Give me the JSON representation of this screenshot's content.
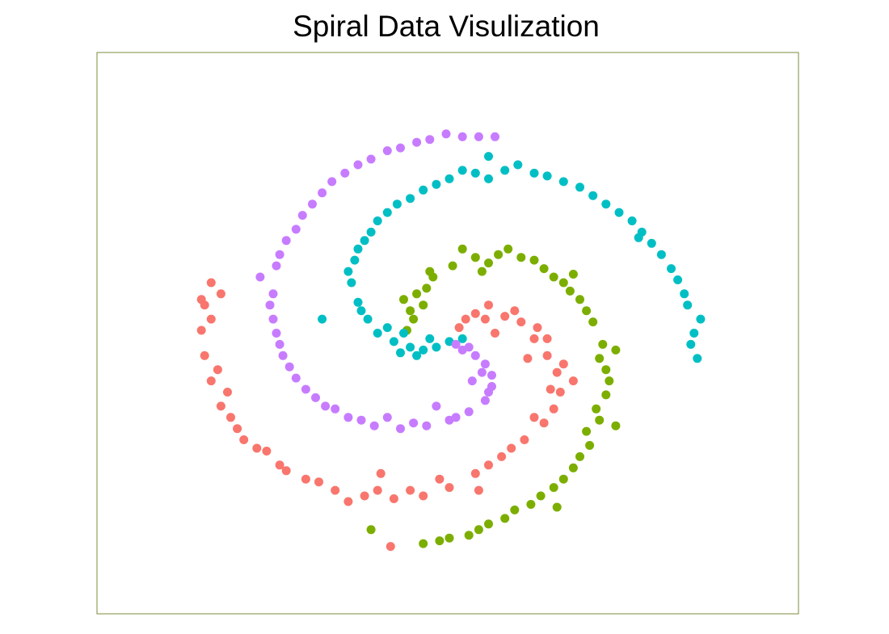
{
  "chart_data": {
    "type": "scatter",
    "title": "Spiral Data Visulization",
    "xlabel": "",
    "ylabel": "",
    "grid": false,
    "legend": "none",
    "axes_visible": false,
    "frame_color": "#7a8c3c",
    "xlim": [
      -1.1,
      1.05
    ],
    "ylim": [
      -1.0,
      1.0
    ],
    "series": [
      {
        "color": "#F8766D",
        "points": [
          [
            0.1,
            0.1
          ],
          [
            0.06,
            0.07
          ],
          [
            0.03,
            0.05
          ],
          [
            0.15,
            0.06
          ],
          [
            0.2,
            0.04
          ],
          [
            0.24,
            -0.02
          ],
          [
            0.28,
            -0.08
          ],
          [
            0.31,
            -0.14
          ],
          [
            0.32,
            -0.21
          ],
          [
            0.3,
            -0.27
          ],
          [
            0.27,
            -0.32
          ],
          [
            0.21,
            -0.38
          ],
          [
            0.14,
            -0.44
          ],
          [
            0.06,
            -0.5
          ],
          [
            -0.02,
            -0.55
          ],
          [
            -0.1,
            -0.58
          ],
          [
            -0.19,
            -0.59
          ],
          [
            -0.28,
            -0.58
          ],
          [
            -0.37,
            -0.56
          ],
          [
            -0.46,
            -0.52
          ],
          [
            -0.54,
            -0.47
          ],
          [
            -0.61,
            -0.41
          ],
          [
            -0.67,
            -0.34
          ],
          [
            -0.72,
            -0.26
          ],
          [
            -0.75,
            -0.17
          ],
          [
            -0.77,
            -0.08
          ],
          [
            -0.78,
            0.01
          ],
          [
            -0.77,
            0.1
          ],
          [
            -0.75,
            0.18
          ],
          [
            0.25,
            0.02
          ],
          [
            0.18,
            0.08
          ],
          [
            0.09,
            0.05
          ],
          [
            0.28,
            -0.02
          ],
          [
            0.33,
            -0.11
          ],
          [
            0.29,
            -0.2
          ],
          [
            0.24,
            -0.3
          ],
          [
            0.1,
            -0.47
          ],
          [
            -0.05,
            -0.52
          ],
          [
            -0.24,
            -0.56
          ],
          [
            -0.42,
            -0.53
          ],
          [
            -0.58,
            -0.42
          ],
          [
            -0.69,
            -0.3
          ],
          [
            -0.73,
            -0.13
          ],
          [
            -0.75,
            0.05
          ],
          [
            -0.72,
            0.14
          ],
          [
            0.12,
            0.0
          ],
          [
            0.36,
            -0.17
          ],
          [
            0.17,
            -0.41
          ],
          [
            -0.14,
            -0.56
          ],
          [
            -0.33,
            -0.6
          ],
          [
            -0.52,
            -0.49
          ],
          [
            -0.65,
            -0.38
          ],
          [
            -0.7,
            -0.21
          ],
          [
            -0.78,
            0.12
          ],
          [
            0.01,
            0.02
          ],
          [
            0.22,
            -0.09
          ],
          [
            -0.23,
            -0.5
          ],
          [
            -0.2,
            -0.76
          ],
          [
            0.07,
            -0.56
          ]
        ]
      },
      {
        "color": "#7CAE00",
        "points": [
          [
            -0.1,
            0.1
          ],
          [
            -0.13,
            0.05
          ],
          [
            -0.15,
            0.01
          ],
          [
            -0.12,
            0.14
          ],
          [
            -0.07,
            0.2
          ],
          [
            -0.01,
            0.24
          ],
          [
            0.06,
            0.27
          ],
          [
            0.13,
            0.28
          ],
          [
            0.2,
            0.27
          ],
          [
            0.27,
            0.23
          ],
          [
            0.33,
            0.18
          ],
          [
            0.38,
            0.12
          ],
          [
            0.42,
            0.04
          ],
          [
            0.45,
            -0.04
          ],
          [
            0.46,
            -0.13
          ],
          [
            0.46,
            -0.22
          ],
          [
            0.44,
            -0.31
          ],
          [
            0.41,
            -0.4
          ],
          [
            0.36,
            -0.48
          ],
          [
            0.3,
            -0.55
          ],
          [
            0.23,
            -0.61
          ],
          [
            0.15,
            -0.66
          ],
          [
            0.07,
            -0.7
          ],
          [
            -0.02,
            -0.73
          ],
          [
            -0.1,
            -0.75
          ],
          [
            -0.09,
            0.16
          ],
          [
            -0.14,
            0.08
          ],
          [
            0.02,
            0.3
          ],
          [
            0.1,
            0.25
          ],
          [
            0.24,
            0.26
          ],
          [
            0.3,
            0.2
          ],
          [
            0.35,
            0.15
          ],
          [
            0.4,
            0.08
          ],
          [
            0.44,
            -0.09
          ],
          [
            0.47,
            -0.17
          ],
          [
            0.43,
            -0.27
          ],
          [
            0.38,
            -0.44
          ],
          [
            0.33,
            -0.52
          ],
          [
            0.26,
            -0.58
          ],
          [
            0.18,
            -0.63
          ],
          [
            0.1,
            -0.68
          ],
          [
            0.04,
            -0.72
          ],
          [
            -0.05,
            -0.74
          ],
          [
            -0.08,
            0.22
          ],
          [
            -0.16,
            0.12
          ],
          [
            0.08,
            0.22
          ],
          [
            0.16,
            0.3
          ],
          [
            0.36,
            0.21
          ],
          [
            0.49,
            -0.06
          ],
          [
            0.4,
            -0.35
          ],
          [
            -0.26,
            -0.7
          ],
          [
            0.49,
            -0.33
          ],
          [
            0.31,
            -0.62
          ]
        ]
      },
      {
        "color": "#00BFC4",
        "points": [
          [
            -0.02,
            -0.03
          ],
          [
            -0.06,
            -0.05
          ],
          [
            -0.1,
            -0.06
          ],
          [
            0.02,
            -0.02
          ],
          [
            -0.14,
            -0.05
          ],
          [
            -0.19,
            -0.03
          ],
          [
            -0.24,
            0.0
          ],
          [
            -0.27,
            0.05
          ],
          [
            -0.3,
            0.11
          ],
          [
            -0.32,
            0.18
          ],
          [
            -0.31,
            0.26
          ],
          [
            -0.28,
            0.33
          ],
          [
            -0.24,
            0.4
          ],
          [
            -0.18,
            0.46
          ],
          [
            -0.1,
            0.51
          ],
          [
            -0.02,
            0.55
          ],
          [
            0.06,
            0.57
          ],
          [
            0.15,
            0.58
          ],
          [
            0.24,
            0.57
          ],
          [
            0.33,
            0.54
          ],
          [
            0.42,
            0.49
          ],
          [
            0.5,
            0.43
          ],
          [
            0.57,
            0.36
          ],
          [
            0.63,
            0.28
          ],
          [
            0.68,
            0.19
          ],
          [
            0.71,
            0.1
          ],
          [
            0.73,
            0.0
          ],
          [
            0.74,
            -0.09
          ],
          [
            -0.08,
            -0.02
          ],
          [
            -0.21,
            0.02
          ],
          [
            -0.29,
            0.08
          ],
          [
            -0.33,
            0.22
          ],
          [
            -0.3,
            0.3
          ],
          [
            -0.21,
            0.43
          ],
          [
            -0.06,
            0.53
          ],
          [
            0.1,
            0.55
          ],
          [
            0.28,
            0.56
          ],
          [
            0.46,
            0.46
          ],
          [
            0.6,
            0.32
          ],
          [
            0.7,
            0.14
          ],
          [
            0.72,
            -0.04
          ],
          [
            -0.12,
            -0.08
          ],
          [
            -0.16,
            0.0
          ],
          [
            -0.26,
            0.36
          ],
          [
            -0.14,
            0.48
          ],
          [
            0.02,
            0.58
          ],
          [
            0.19,
            0.6
          ],
          [
            0.38,
            0.52
          ],
          [
            0.54,
            0.4
          ],
          [
            0.66,
            0.23
          ],
          [
            0.75,
            0.05
          ],
          [
            -0.41,
            0.05
          ],
          [
            -0.17,
            -0.07
          ],
          [
            0.1,
            0.63
          ],
          [
            0.56,
            0.34
          ]
        ]
      },
      {
        "color": "#C77CFF",
        "points": [
          [
            0.02,
            -0.06
          ],
          [
            0.06,
            -0.08
          ],
          [
            0.09,
            -0.11
          ],
          [
            0.0,
            -0.04
          ],
          [
            0.11,
            -0.15
          ],
          [
            0.11,
            -0.19
          ],
          [
            0.09,
            -0.24
          ],
          [
            0.04,
            -0.28
          ],
          [
            -0.02,
            -0.31
          ],
          [
            -0.09,
            -0.33
          ],
          [
            -0.17,
            -0.34
          ],
          [
            -0.25,
            -0.33
          ],
          [
            -0.33,
            -0.3
          ],
          [
            -0.4,
            -0.26
          ],
          [
            -0.46,
            -0.2
          ],
          [
            -0.51,
            -0.12
          ],
          [
            -0.54,
            -0.04
          ],
          [
            -0.56,
            0.05
          ],
          [
            -0.56,
            0.14
          ],
          [
            -0.55,
            0.24
          ],
          [
            -0.52,
            0.33
          ],
          [
            -0.47,
            0.42
          ],
          [
            -0.41,
            0.5
          ],
          [
            -0.34,
            0.57
          ],
          [
            -0.26,
            0.62
          ],
          [
            -0.17,
            0.66
          ],
          [
            -0.08,
            0.69
          ],
          [
            0.02,
            0.7
          ],
          [
            0.12,
            0.7
          ],
          [
            0.04,
            -0.05
          ],
          [
            0.1,
            -0.21
          ],
          [
            0.0,
            -0.3
          ],
          [
            -0.13,
            -0.32
          ],
          [
            -0.29,
            -0.31
          ],
          [
            -0.43,
            -0.23
          ],
          [
            -0.53,
            -0.08
          ],
          [
            -0.57,
            0.1
          ],
          [
            -0.54,
            0.28
          ],
          [
            -0.44,
            0.46
          ],
          [
            -0.3,
            0.6
          ],
          [
            -0.12,
            0.68
          ],
          [
            0.07,
            0.7
          ],
          [
            0.08,
            -0.14
          ],
          [
            -0.06,
            -0.26
          ],
          [
            -0.21,
            -0.3
          ],
          [
            -0.37,
            -0.27
          ],
          [
            -0.49,
            -0.16
          ],
          [
            -0.55,
            0.0
          ],
          [
            -0.49,
            0.37
          ],
          [
            -0.38,
            0.54
          ],
          [
            -0.21,
            0.65
          ],
          [
            -0.03,
            0.71
          ],
          [
            0.05,
            -0.17
          ],
          [
            -0.6,
            0.2
          ]
        ]
      }
    ]
  }
}
